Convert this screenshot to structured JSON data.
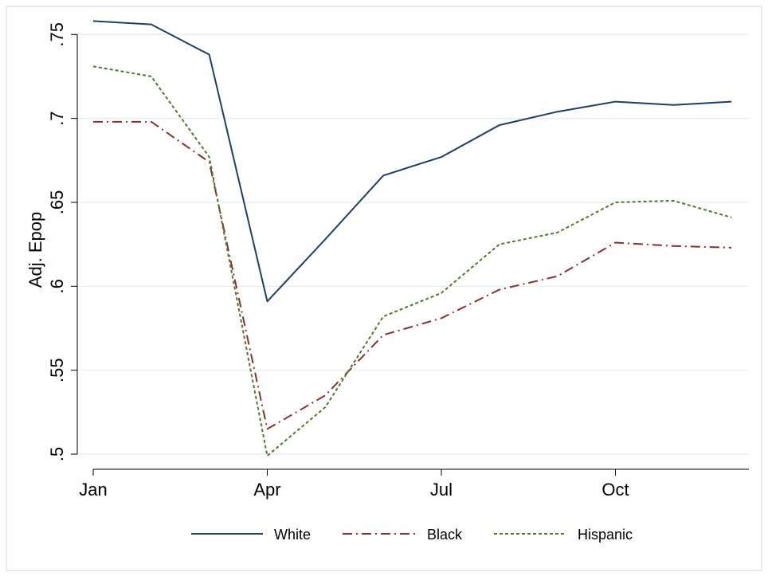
{
  "chart_data": {
    "type": "line",
    "title": "",
    "xlabel": "",
    "ylabel": "Adj. Epop",
    "x": [
      1,
      2,
      3,
      4,
      5,
      6,
      7,
      8,
      9,
      10,
      11,
      12
    ],
    "xticks": [
      {
        "value": 1,
        "label": "Jan"
      },
      {
        "value": 4,
        "label": "Apr"
      },
      {
        "value": 7,
        "label": "Jul"
      },
      {
        "value": 10,
        "label": "Oct"
      }
    ],
    "yticks": [
      {
        "value": 0.5,
        "label": ".5"
      },
      {
        "value": 0.55,
        "label": ".55"
      },
      {
        "value": 0.6,
        "label": ".6"
      },
      {
        "value": 0.65,
        "label": ".65"
      },
      {
        "value": 0.7,
        "label": ".7"
      },
      {
        "value": 0.75,
        "label": ".75"
      }
    ],
    "xlim": [
      1,
      12.3
    ],
    "ylim": [
      0.491,
      0.762
    ],
    "grid": true,
    "legend_position": "bottom",
    "series": [
      {
        "name": "White",
        "color": "#1f3f66",
        "dash": "solid",
        "values": [
          0.758,
          0.756,
          0.738,
          0.591,
          0.628,
          0.666,
          0.677,
          0.696,
          0.704,
          0.71,
          0.708,
          0.71
        ]
      },
      {
        "name": "Black",
        "color": "#8a2f2f",
        "dash": "dash-dot",
        "values": [
          0.698,
          0.698,
          0.674,
          0.515,
          0.535,
          0.571,
          0.581,
          0.598,
          0.606,
          0.626,
          0.624,
          0.623
        ]
      },
      {
        "name": "Hispanic",
        "color": "#4e7a2b",
        "dash": "dotted",
        "values": [
          0.731,
          0.725,
          0.677,
          0.499,
          0.528,
          0.582,
          0.596,
          0.625,
          0.632,
          0.65,
          0.651,
          0.641
        ]
      }
    ]
  }
}
